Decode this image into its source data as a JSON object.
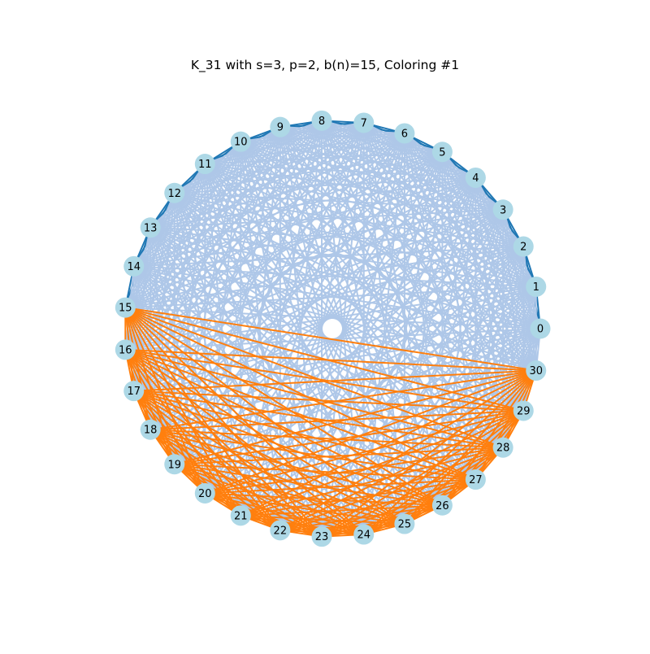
{
  "title": "K_31 with s=3, p=2, b(n)=15, Coloring #1",
  "graph": {
    "type": "complete-graph",
    "n": 31,
    "node_labels": [
      "0",
      "1",
      "2",
      "3",
      "4",
      "5",
      "6",
      "7",
      "8",
      "9",
      "10",
      "11",
      "12",
      "13",
      "14",
      "15",
      "16",
      "17",
      "18",
      "19",
      "20",
      "21",
      "22",
      "23",
      "24",
      "25",
      "26",
      "27",
      "28",
      "29",
      "30"
    ],
    "colors": {
      "node_fill": "#add8e6",
      "class_a_edges": "#aec7e8",
      "class_b_edges": "#1f77b4",
      "class_c_edges": "#ff7f0e"
    },
    "edge_groups": [
      {
        "name": "dark-blue",
        "color_key": "class_b_edges",
        "rule": "pairs within nodes 0-15 with circular distance <= 2"
      },
      {
        "name": "light-blue",
        "color_key": "class_a_edges",
        "rule": "all remaining edges touching nodes 0-14 or node 30 connections to 0-15"
      },
      {
        "name": "orange",
        "color_key": "class_c_edges",
        "rule": "all edges among nodes 15-30"
      }
    ]
  }
}
